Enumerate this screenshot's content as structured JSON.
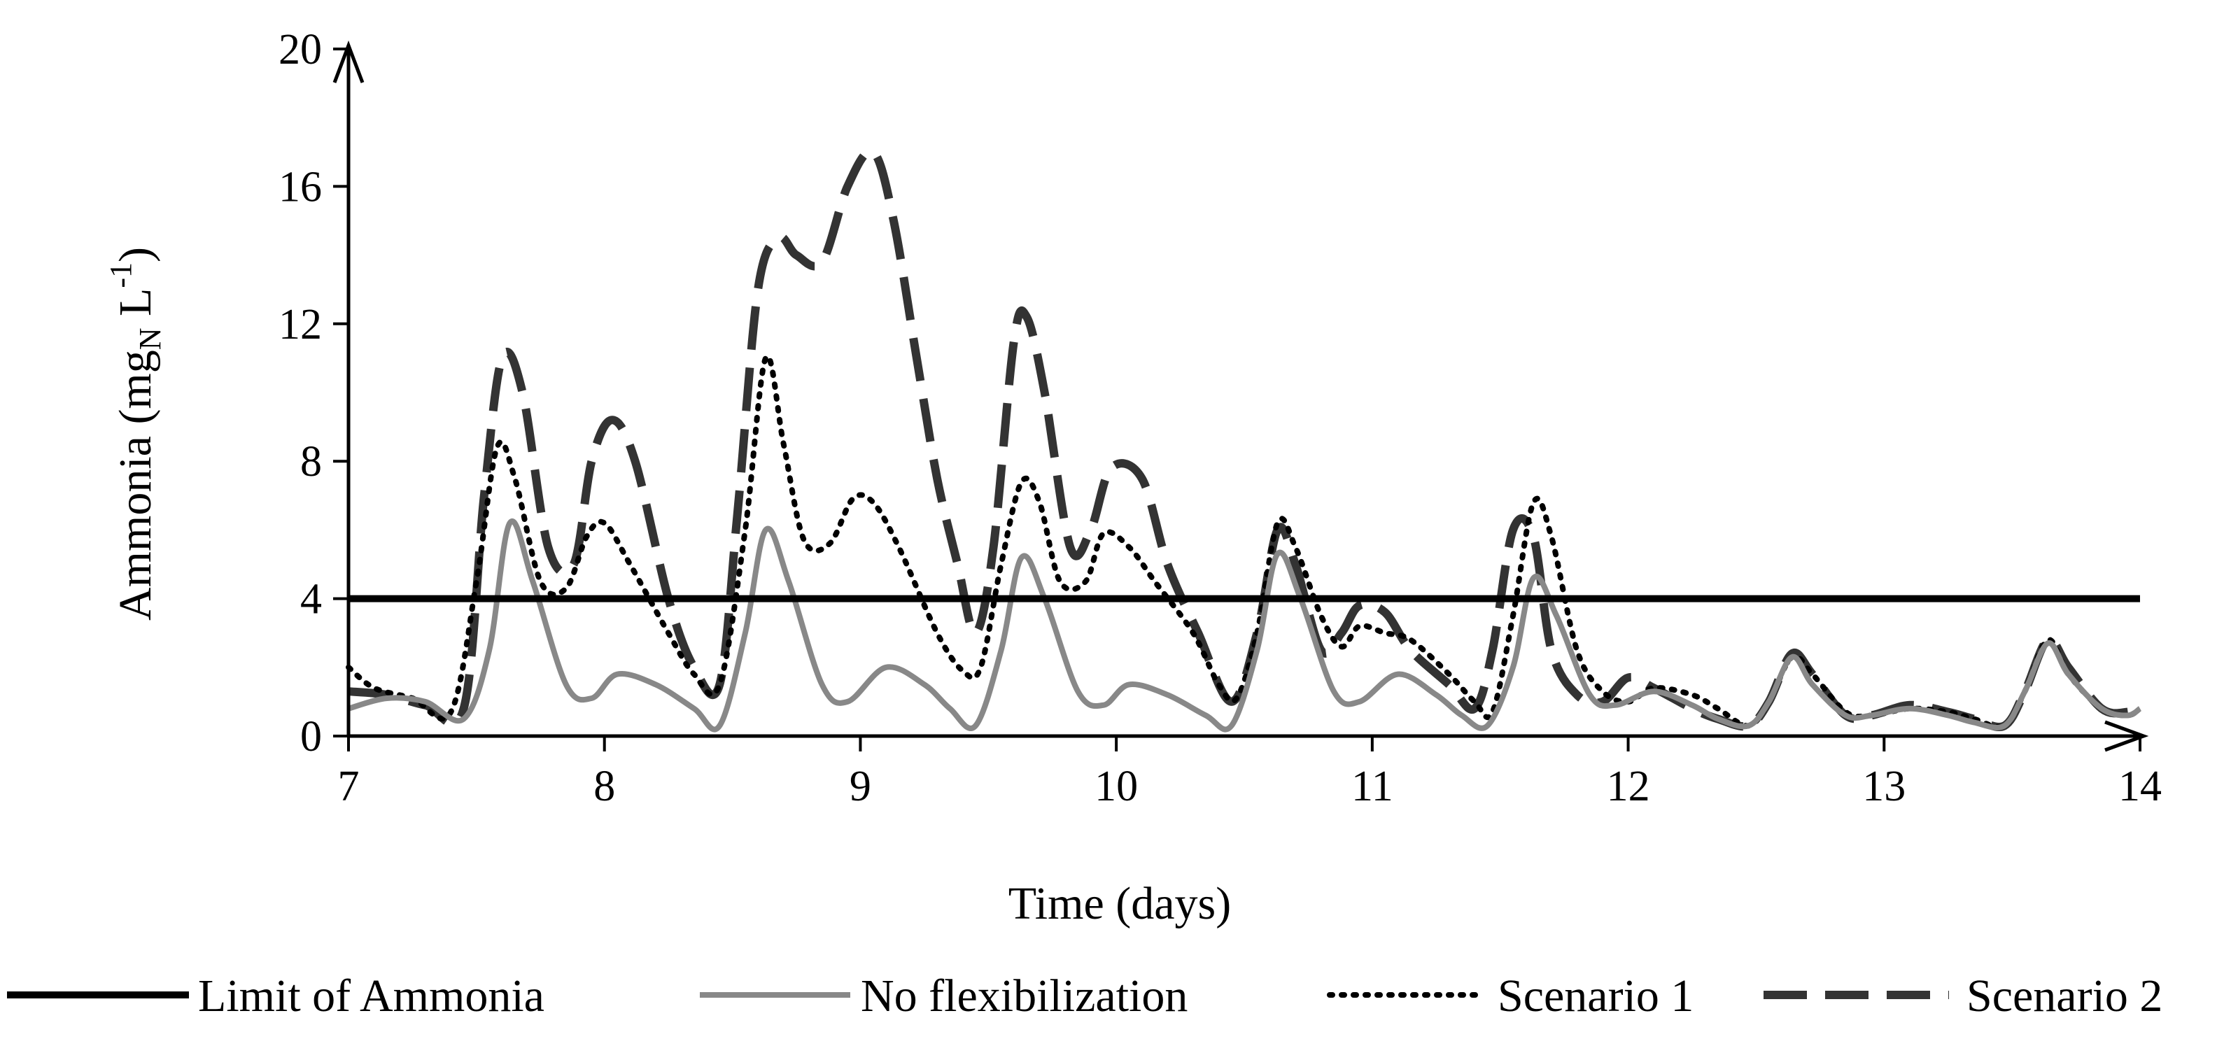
{
  "chart_data": {
    "type": "line",
    "title": "",
    "xlabel": "Time (days)",
    "ylabel": {
      "prefix": "Ammonia (mg",
      "subscript": "N",
      "middle": " L",
      "superscript": "-1",
      "suffix": ")"
    },
    "xlim": [
      7,
      14
    ],
    "ylim": [
      0,
      20
    ],
    "x_ticks": [
      "7",
      "8",
      "9",
      "10",
      "11",
      "12",
      "13",
      "14"
    ],
    "y_ticks": [
      "0",
      "4",
      "8",
      "12",
      "16",
      "20"
    ],
    "grid": false,
    "legend_position": "bottom",
    "series": [
      {
        "name": "Limit of Ammonia",
        "color": "#000000",
        "style": "solid",
        "x": [
          7,
          14
        ],
        "y": [
          4,
          4
        ]
      },
      {
        "name": "No flexibilization",
        "color": "#888888",
        "style": "solid",
        "x": [
          7,
          7.15,
          7.3,
          7.45,
          7.55,
          7.63,
          7.72,
          7.85,
          7.95,
          8.05,
          8.2,
          8.35,
          8.45,
          8.55,
          8.63,
          8.72,
          8.85,
          8.95,
          9.1,
          9.25,
          9.35,
          9.45,
          9.55,
          9.63,
          9.72,
          9.85,
          9.95,
          10.05,
          10.2,
          10.35,
          10.45,
          10.55,
          10.63,
          10.72,
          10.85,
          10.95,
          11.1,
          11.25,
          11.35,
          11.45,
          11.55,
          11.63,
          11.72,
          11.85,
          11.95,
          12.1,
          12.25,
          12.35,
          12.47,
          12.55,
          12.64,
          12.72,
          12.85,
          12.95,
          13.1,
          13.25,
          13.35,
          13.47,
          13.55,
          13.64,
          13.72,
          13.85,
          13.95,
          14
        ],
        "y": [
          0.8,
          1.1,
          1.0,
          0.5,
          2.5,
          6.2,
          4.5,
          1.5,
          1.1,
          1.8,
          1.5,
          0.8,
          0.3,
          3.0,
          6.0,
          4.5,
          1.5,
          1.0,
          2.0,
          1.5,
          0.8,
          0.3,
          2.5,
          5.2,
          4.0,
          1.3,
          0.9,
          1.5,
          1.2,
          0.6,
          0.3,
          2.5,
          5.3,
          4.0,
          1.3,
          1.0,
          1.8,
          1.2,
          0.6,
          0.3,
          2.0,
          4.6,
          3.5,
          1.2,
          0.9,
          1.3,
          0.9,
          0.5,
          0.3,
          1.0,
          2.3,
          1.5,
          0.6,
          0.6,
          0.8,
          0.6,
          0.4,
          0.3,
          1.3,
          2.7,
          1.8,
          0.8,
          0.6,
          0.8
        ]
      },
      {
        "name": "Scenario 1",
        "color": "#000000",
        "style": "dotted",
        "x": [
          7,
          7.1,
          7.25,
          7.4,
          7.5,
          7.58,
          7.65,
          7.75,
          7.85,
          7.93,
          8.0,
          8.1,
          8.25,
          8.35,
          8.45,
          8.55,
          8.63,
          8.7,
          8.78,
          8.88,
          8.97,
          9.05,
          9.15,
          9.3,
          9.4,
          9.47,
          9.55,
          9.63,
          9.7,
          9.78,
          9.88,
          9.95,
          10.05,
          10.15,
          10.3,
          10.4,
          10.47,
          10.55,
          10.63,
          10.7,
          10.8,
          10.88,
          10.95,
          11.05,
          11.15,
          11.3,
          11.4,
          11.47,
          11.55,
          11.63,
          11.7,
          11.8,
          11.9,
          12.0,
          12.1,
          12.25,
          12.35,
          12.47,
          12.55,
          12.64,
          12.72,
          12.85,
          12.95,
          13.1,
          13.25,
          13.35,
          13.47,
          13.55,
          13.64,
          13.72,
          13.85,
          13.95,
          14
        ],
        "y": [
          2.0,
          1.4,
          1.1,
          0.7,
          4.5,
          8.4,
          7.5,
          4.5,
          4.3,
          5.8,
          6.2,
          5.0,
          3.0,
          1.8,
          1.5,
          6.0,
          11.0,
          8.5,
          5.7,
          5.6,
          6.9,
          6.8,
          5.5,
          3.0,
          1.9,
          2.0,
          5.0,
          7.4,
          6.8,
          4.5,
          4.5,
          5.9,
          5.5,
          4.5,
          3.0,
          1.5,
          1.1,
          3.0,
          6.2,
          5.5,
          3.5,
          2.6,
          3.2,
          3.0,
          2.8,
          1.8,
          1.0,
          0.7,
          3.5,
          6.8,
          5.8,
          2.5,
          1.3,
          1.0,
          1.4,
          1.2,
          0.8,
          0.3,
          1.0,
          2.3,
          1.8,
          0.7,
          0.6,
          0.8,
          0.7,
          0.5,
          0.3,
          1.3,
          2.8,
          1.8,
          0.8,
          0.6,
          0.8
        ]
      },
      {
        "name": "Scenario 2",
        "color": "#333333",
        "style": "dashed",
        "x": [
          7,
          7.15,
          7.3,
          7.45,
          7.53,
          7.6,
          7.68,
          7.78,
          7.88,
          7.95,
          8.03,
          8.12,
          8.25,
          8.35,
          8.45,
          8.52,
          8.6,
          8.68,
          8.75,
          8.85,
          8.95,
          9.05,
          9.13,
          9.22,
          9.3,
          9.38,
          9.45,
          9.52,
          9.6,
          9.65,
          9.72,
          9.82,
          9.9,
          9.98,
          10.1,
          10.2,
          10.32,
          10.45,
          10.55,
          10.63,
          10.7,
          10.8,
          10.88,
          10.95,
          11.05,
          11.15,
          11.3,
          11.4,
          11.47,
          11.55,
          11.63,
          11.7,
          11.8,
          11.9,
          12.0,
          12.1,
          12.25,
          12.35,
          12.47,
          12.55,
          12.64,
          12.72,
          12.85,
          12.95,
          13.1,
          13.25,
          13.35,
          13.47,
          13.55,
          13.64,
          13.72,
          13.85,
          13.95,
          14
        ],
        "y": [
          1.3,
          1.2,
          0.9,
          0.8,
          7.0,
          11.0,
          10.0,
          5.5,
          5.0,
          8.0,
          9.2,
          8.0,
          4.0,
          2.0,
          1.5,
          6.5,
          13.0,
          14.5,
          14.0,
          13.8,
          16.0,
          17.0,
          15.0,
          11.0,
          7.5,
          5.0,
          3.0,
          5.5,
          11.5,
          12.2,
          10.0,
          5.5,
          6.0,
          7.8,
          7.5,
          5.0,
          3.0,
          1.0,
          3.0,
          6.0,
          5.0,
          2.5,
          3.0,
          3.8,
          3.6,
          2.5,
          1.5,
          0.8,
          2.5,
          6.0,
          5.8,
          2.5,
          1.2,
          1.0,
          1.7,
          1.4,
          0.8,
          0.5,
          0.3,
          1.0,
          2.4,
          1.8,
          0.6,
          0.6,
          0.9,
          0.7,
          0.5,
          0.3,
          1.3,
          2.8,
          2.0,
          0.8,
          0.7,
          0.9
        ]
      }
    ]
  }
}
